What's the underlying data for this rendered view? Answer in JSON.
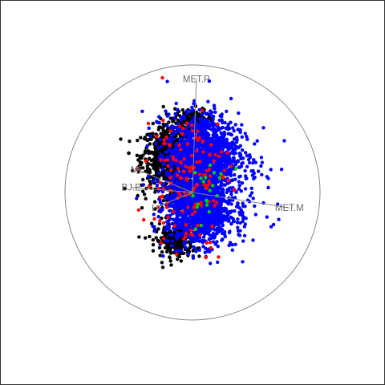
{
  "chart_data": {
    "type": "scatter",
    "title": "",
    "xlabel": "",
    "ylabel": "",
    "xlim": [
      -1,
      1
    ],
    "ylim": [
      -1,
      1
    ],
    "grid": false,
    "legend": "none",
    "boundary": "unit-circle",
    "anchors": [
      {
        "label": "MET.P",
        "x": 0.03,
        "y": 0.89
      },
      {
        "label": "MET.M",
        "x": 0.76,
        "y": -0.12
      },
      {
        "label": "ME",
        "x": -0.43,
        "y": 0.18
      },
      {
        "label": "BJ.E",
        "x": -0.48,
        "y": 0.04
      },
      {
        "label": "L",
        "x": -0.3,
        "y": -0.12
      }
    ],
    "series": [
      {
        "color": "#000000",
        "clusters": [
          {
            "cx": -0.18,
            "cy": 0.28,
            "sx": 0.11,
            "sy": 0.12,
            "n": 700
          },
          {
            "cx": -0.02,
            "cy": 0.56,
            "sx": 0.07,
            "sy": 0.05,
            "n": 140
          },
          {
            "cx": -0.13,
            "cy": -0.38,
            "sx": 0.08,
            "sy": 0.06,
            "n": 220
          },
          {
            "cx": -0.08,
            "cy": 0.0,
            "sx": 0.12,
            "sy": 0.2,
            "n": 260
          }
        ]
      },
      {
        "color": "#0000ff",
        "clusters": [
          {
            "cx": 0.08,
            "cy": 0.3,
            "sx": 0.14,
            "sy": 0.16,
            "n": 1300
          },
          {
            "cx": 0.06,
            "cy": -0.15,
            "sx": 0.13,
            "sy": 0.13,
            "n": 1000
          },
          {
            "cx": 0.15,
            "cy": 0.1,
            "sx": 0.23,
            "sy": 0.22,
            "n": 280
          }
        ]
      },
      {
        "color": "#ff0000",
        "clusters": [
          {
            "cx": -0.05,
            "cy": 0.1,
            "sx": 0.16,
            "sy": 0.28,
            "n": 150
          }
        ]
      },
      {
        "color": "#00cc00",
        "clusters": [
          {
            "cx": 0.1,
            "cy": 0.0,
            "sx": 0.1,
            "sy": 0.14,
            "n": 22
          }
        ]
      }
    ]
  }
}
